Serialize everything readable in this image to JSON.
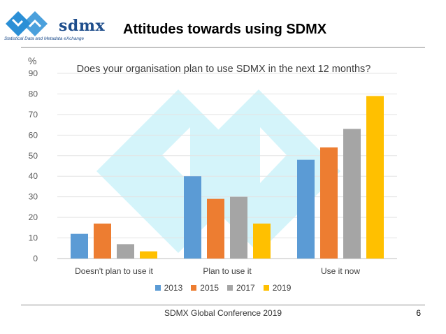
{
  "header": {
    "logo_text": "sdmx",
    "logo_subtitle": "Statistical Data and Metadata eXchange",
    "title": "Attitudes towards using SDMX"
  },
  "footer": {
    "conference": "SDMX Global Conference 2019",
    "page_number": "6"
  },
  "chart_data": {
    "type": "bar",
    "title": "Does your organisation plan to use SDMX in the next 12 months?",
    "ylabel": "%",
    "xlabel": "",
    "ylim": [
      0,
      90
    ],
    "yticks": [
      0,
      10,
      20,
      30,
      40,
      50,
      60,
      70,
      80,
      90
    ],
    "grid": true,
    "legend_position": "bottom",
    "categories": [
      "Doesn't plan to use it",
      "Plan to use it",
      "Use it now"
    ],
    "series": [
      {
        "name": "2013",
        "color": "#5b9bd5",
        "values": [
          12,
          40,
          48
        ]
      },
      {
        "name": "2015",
        "color": "#ed7d31",
        "values": [
          17,
          29,
          54
        ]
      },
      {
        "name": "2017",
        "color": "#a5a5a5",
        "values": [
          7,
          30,
          63
        ]
      },
      {
        "name": "2019",
        "color": "#ffc000",
        "values": [
          3.5,
          17,
          79
        ]
      }
    ]
  }
}
